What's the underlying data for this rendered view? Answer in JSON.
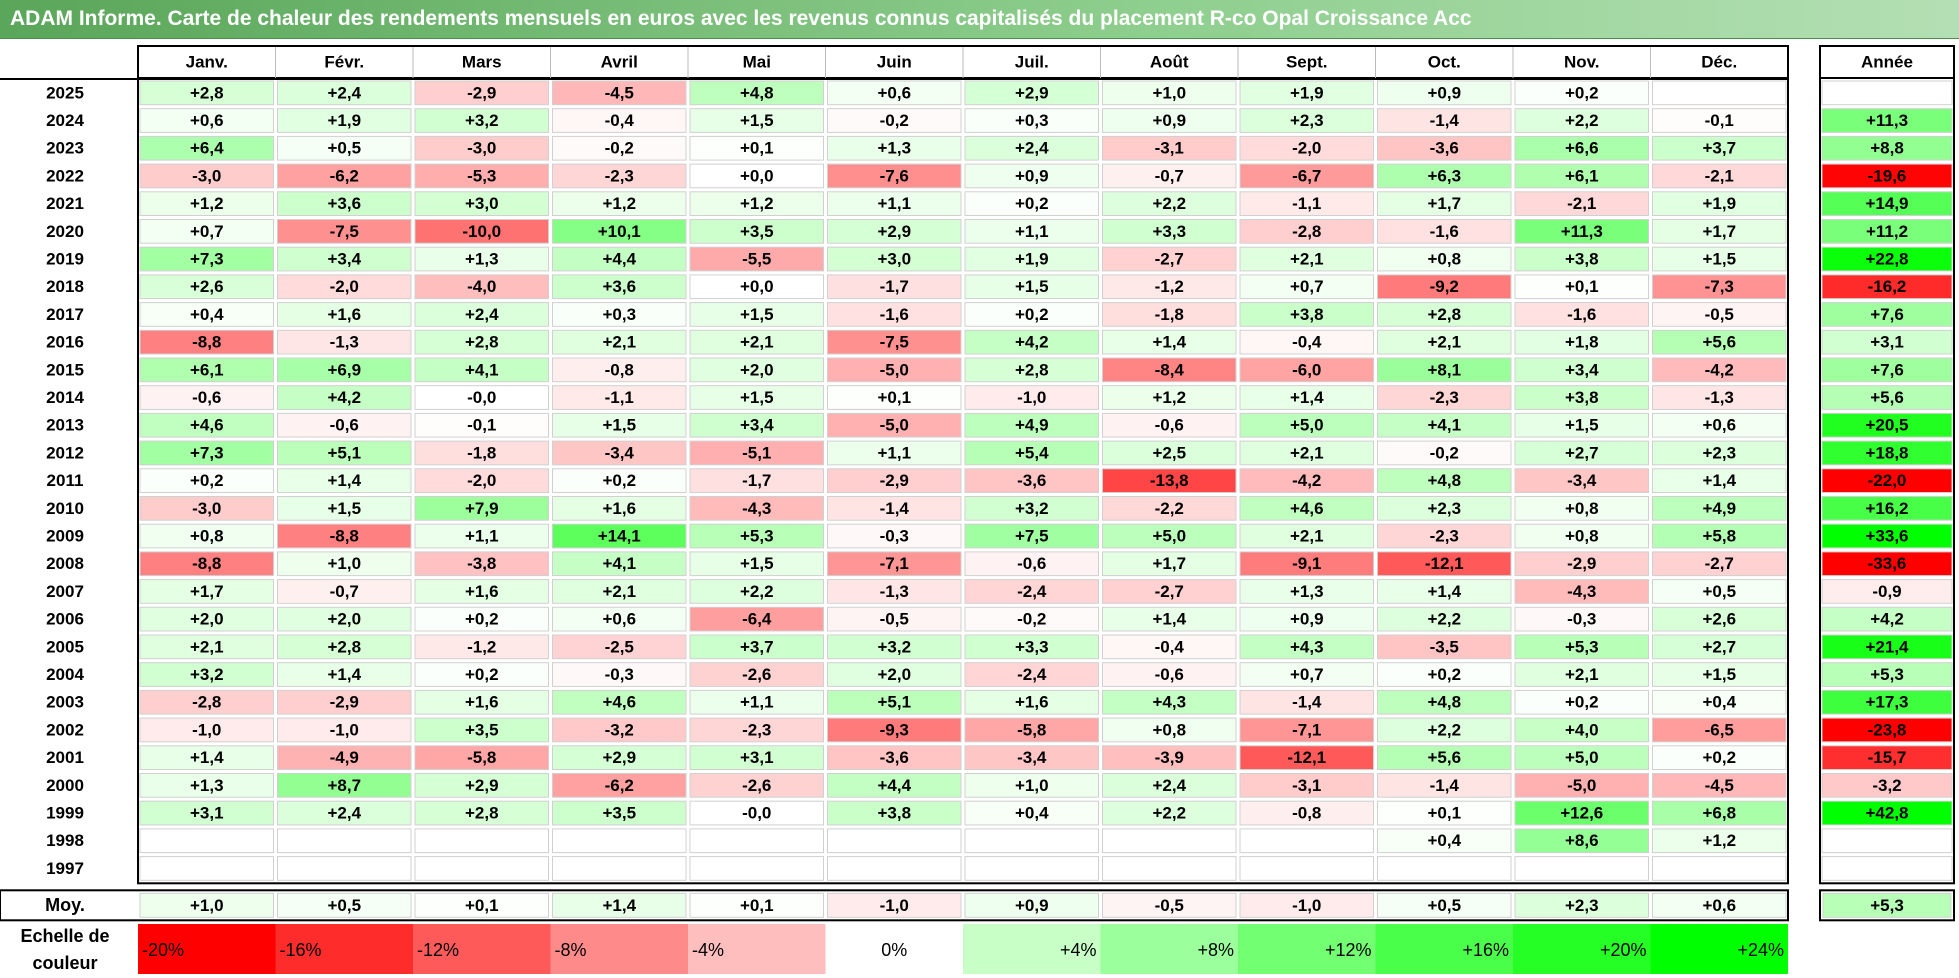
{
  "title": "ADAM Informe. Carte de chaleur des rendements mensuels en euros avec les revenus connus capitalisés du placement R-co Opal Croissance Acc",
  "chart_data": {
    "type": "heatmap",
    "months": [
      "Janv.",
      "Févr.",
      "Mars",
      "Avril",
      "Mai",
      "Juin",
      "Juil.",
      "Août",
      "Sept.",
      "Oct.",
      "Nov.",
      "Déc."
    ],
    "annual_header": "Année",
    "rows": [
      {
        "year": "2025",
        "values": [
          "+2,8",
          "+2,4",
          "-2,9",
          "-4,5",
          "+4,8",
          "+0,6",
          "+2,9",
          "+1,0",
          "+1,9",
          "+0,9",
          "+0,2",
          ""
        ],
        "annual": ""
      },
      {
        "year": "2024",
        "values": [
          "+0,6",
          "+1,9",
          "+3,2",
          "-0,4",
          "+1,5",
          "-0,2",
          "+0,3",
          "+0,9",
          "+2,3",
          "-1,4",
          "+2,2",
          "-0,1"
        ],
        "annual": "+11,3"
      },
      {
        "year": "2023",
        "values": [
          "+6,4",
          "+0,5",
          "-3,0",
          "-0,2",
          "+0,1",
          "+1,3",
          "+2,4",
          "-3,1",
          "-2,0",
          "-3,6",
          "+6,6",
          "+3,7"
        ],
        "annual": "+8,8"
      },
      {
        "year": "2022",
        "values": [
          "-3,0",
          "-6,2",
          "-5,3",
          "-2,3",
          "+0,0",
          "-7,6",
          "+0,9",
          "-0,7",
          "-6,7",
          "+6,3",
          "+6,1",
          "-2,1"
        ],
        "annual": "-19,6"
      },
      {
        "year": "2021",
        "values": [
          "+1,2",
          "+3,6",
          "+3,0",
          "+1,2",
          "+1,2",
          "+1,1",
          "+0,2",
          "+2,2",
          "-1,1",
          "+1,7",
          "-2,1",
          "+1,9"
        ],
        "annual": "+14,9"
      },
      {
        "year": "2020",
        "values": [
          "+0,7",
          "-7,5",
          "-10,0",
          "+10,1",
          "+3,5",
          "+2,9",
          "+1,1",
          "+3,3",
          "-2,8",
          "-1,6",
          "+11,3",
          "+1,7"
        ],
        "annual": "+11,2"
      },
      {
        "year": "2019",
        "values": [
          "+7,3",
          "+3,4",
          "+1,3",
          "+4,4",
          "-5,5",
          "+3,0",
          "+1,9",
          "-2,7",
          "+2,1",
          "+0,8",
          "+3,8",
          "+1,5"
        ],
        "annual": "+22,8"
      },
      {
        "year": "2018",
        "values": [
          "+2,6",
          "-2,0",
          "-4,0",
          "+3,6",
          "+0,0",
          "-1,7",
          "+1,5",
          "-1,2",
          "+0,7",
          "-9,2",
          "+0,1",
          "-7,3"
        ],
        "annual": "-16,2"
      },
      {
        "year": "2017",
        "values": [
          "+0,4",
          "+1,6",
          "+2,4",
          "+0,3",
          "+1,5",
          "-1,6",
          "+0,2",
          "-1,8",
          "+3,8",
          "+2,8",
          "-1,6",
          "-0,5"
        ],
        "annual": "+7,6"
      },
      {
        "year": "2016",
        "values": [
          "-8,8",
          "-1,3",
          "+2,8",
          "+2,1",
          "+2,1",
          "-7,5",
          "+4,2",
          "+1,4",
          "-0,4",
          "+2,1",
          "+1,8",
          "+5,6"
        ],
        "annual": "+3,1"
      },
      {
        "year": "2015",
        "values": [
          "+6,1",
          "+6,9",
          "+4,1",
          "-0,8",
          "+2,0",
          "-5,0",
          "+2,8",
          "-8,4",
          "-6,0",
          "+8,1",
          "+3,4",
          "-4,2"
        ],
        "annual": "+7,6"
      },
      {
        "year": "2014",
        "values": [
          "-0,6",
          "+4,2",
          "-0,0",
          "-1,1",
          "+1,5",
          "+0,1",
          "-1,0",
          "+1,2",
          "+1,4",
          "-2,3",
          "+3,8",
          "-1,3"
        ],
        "annual": "+5,6"
      },
      {
        "year": "2013",
        "values": [
          "+4,6",
          "-0,6",
          "-0,1",
          "+1,5",
          "+3,4",
          "-5,0",
          "+4,9",
          "-0,6",
          "+5,0",
          "+4,1",
          "+1,5",
          "+0,6"
        ],
        "annual": "+20,5"
      },
      {
        "year": "2012",
        "values": [
          "+7,3",
          "+5,1",
          "-1,8",
          "-3,4",
          "-5,1",
          "+1,1",
          "+5,4",
          "+2,5",
          "+2,1",
          "-0,2",
          "+2,7",
          "+2,3"
        ],
        "annual": "+18,8"
      },
      {
        "year": "2011",
        "values": [
          "+0,2",
          "+1,4",
          "-2,0",
          "+0,2",
          "-1,7",
          "-2,9",
          "-3,6",
          "-13,8",
          "-4,2",
          "+4,8",
          "-3,4",
          "+1,4"
        ],
        "annual": "-22,0"
      },
      {
        "year": "2010",
        "values": [
          "-3,0",
          "+1,5",
          "+7,9",
          "+1,6",
          "-4,3",
          "-1,4",
          "+3,2",
          "-2,2",
          "+4,6",
          "+2,3",
          "+0,8",
          "+4,9"
        ],
        "annual": "+16,2"
      },
      {
        "year": "2009",
        "values": [
          "+0,8",
          "-8,8",
          "+1,1",
          "+14,1",
          "+5,3",
          "-0,3",
          "+7,5",
          "+5,0",
          "+2,1",
          "-2,3",
          "+0,8",
          "+5,8"
        ],
        "annual": "+33,6"
      },
      {
        "year": "2008",
        "values": [
          "-8,8",
          "+1,0",
          "-3,8",
          "+4,1",
          "+1,5",
          "-7,1",
          "-0,6",
          "+1,7",
          "-9,1",
          "-12,1",
          "-2,9",
          "-2,7"
        ],
        "annual": "-33,6"
      },
      {
        "year": "2007",
        "values": [
          "+1,7",
          "-0,7",
          "+1,6",
          "+2,1",
          "+2,2",
          "-1,3",
          "-2,4",
          "-2,7",
          "+1,3",
          "+1,4",
          "-4,3",
          "+0,5"
        ],
        "annual": "-0,9"
      },
      {
        "year": "2006",
        "values": [
          "+2,0",
          "+2,0",
          "+0,2",
          "+0,6",
          "-6,4",
          "-0,5",
          "-0,2",
          "+1,4",
          "+0,9",
          "+2,2",
          "-0,3",
          "+2,6"
        ],
        "annual": "+4,2"
      },
      {
        "year": "2005",
        "values": [
          "+2,1",
          "+2,8",
          "-1,2",
          "-2,5",
          "+3,7",
          "+3,2",
          "+3,3",
          "-0,4",
          "+4,3",
          "-3,5",
          "+5,3",
          "+2,7"
        ],
        "annual": "+21,4"
      },
      {
        "year": "2004",
        "values": [
          "+3,2",
          "+1,4",
          "+0,2",
          "-0,3",
          "-2,6",
          "+2,0",
          "-2,4",
          "-0,6",
          "+0,7",
          "+0,2",
          "+2,1",
          "+1,5"
        ],
        "annual": "+5,3"
      },
      {
        "year": "2003",
        "values": [
          "-2,8",
          "-2,9",
          "+1,6",
          "+4,6",
          "+1,1",
          "+5,1",
          "+1,6",
          "+4,3",
          "-1,4",
          "+4,8",
          "+0,2",
          "+0,4"
        ],
        "annual": "+17,3"
      },
      {
        "year": "2002",
        "values": [
          "-1,0",
          "-1,0",
          "+3,5",
          "-3,2",
          "-2,3",
          "-9,3",
          "-5,8",
          "+0,8",
          "-7,1",
          "+2,2",
          "+4,0",
          "-6,5"
        ],
        "annual": "-23,8"
      },
      {
        "year": "2001",
        "values": [
          "+1,4",
          "-4,9",
          "-5,8",
          "+2,9",
          "+3,1",
          "-3,6",
          "-3,4",
          "-3,9",
          "-12,1",
          "+5,6",
          "+5,0",
          "+0,2"
        ],
        "annual": "-15,7"
      },
      {
        "year": "2000",
        "values": [
          "+1,3",
          "+8,7",
          "+2,9",
          "-6,2",
          "-2,6",
          "+4,4",
          "+1,0",
          "+2,4",
          "-3,1",
          "-1,4",
          "-5,0",
          "-4,5"
        ],
        "annual": "-3,2"
      },
      {
        "year": "1999",
        "values": [
          "+3,1",
          "+2,4",
          "+2,8",
          "+3,5",
          "-0,0",
          "+3,8",
          "+0,4",
          "+2,2",
          "-0,8",
          "+0,1",
          "+12,6",
          "+6,8"
        ],
        "annual": "+42,8"
      },
      {
        "year": "1998",
        "values": [
          "",
          "",
          "",
          "",
          "",
          "",
          "",
          "",
          "",
          "+0,4",
          "+8,6",
          "+1,2"
        ],
        "annual": ""
      },
      {
        "year": "1997",
        "values": [
          "",
          "",
          "",
          "",
          "",
          "",
          "",
          "",
          "",
          "",
          "",
          ""
        ],
        "annual": ""
      }
    ],
    "average": {
      "label": "Moy.",
      "values": [
        "+1,0",
        "+0,5",
        "+0,1",
        "+1,4",
        "+0,1",
        "-1,0",
        "+0,9",
        "-0,5",
        "-1,0",
        "+0,5",
        "+2,3",
        "+0,6"
      ],
      "annual": "+5,3"
    },
    "scale": {
      "label_line1": "Echelle de",
      "label_line2": "couleur",
      "stops": [
        {
          "label": "-20%",
          "value": -20
        },
        {
          "label": "-16%",
          "value": -16
        },
        {
          "label": "-12%",
          "value": -12
        },
        {
          "label": "-8%",
          "value": -8
        },
        {
          "label": "-4%",
          "value": -4
        },
        {
          "label": "0%",
          "value": 0
        },
        {
          "label": "+4%",
          "value": 4
        },
        {
          "label": "+8%",
          "value": 8
        },
        {
          "label": "+12%",
          "value": 12
        },
        {
          "label": "+16%",
          "value": 16
        },
        {
          "label": "+20%",
          "value": 20
        },
        {
          "label": "+24%",
          "value": 24
        }
      ]
    },
    "colors": {
      "negative_max": "#ff0000",
      "positive_max": "#00ff00",
      "neutral": "#ffffff",
      "title_bg": "#6cb86c"
    }
  }
}
